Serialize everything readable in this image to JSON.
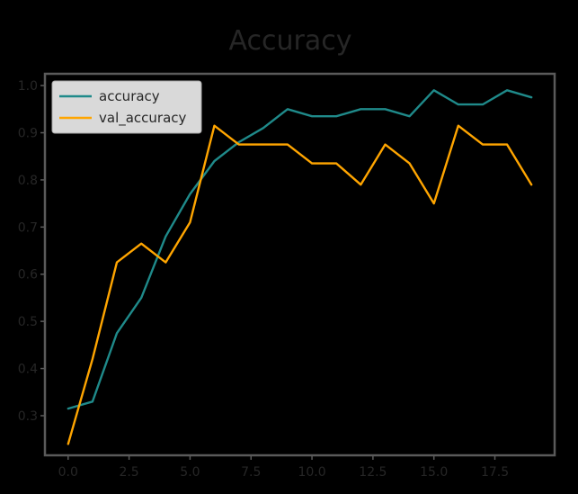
{
  "chart_data": {
    "type": "line",
    "title": "Accuracy",
    "xlabel": "",
    "ylabel": "",
    "x": [
      0,
      1,
      2,
      3,
      4,
      5,
      6,
      7,
      8,
      9,
      10,
      11,
      12,
      13,
      14,
      15,
      16,
      17,
      18,
      19
    ],
    "xlim": [
      -0.95,
      19.95
    ],
    "ylim": [
      0.216,
      1.025
    ],
    "x_ticks": [
      0.0,
      2.5,
      5.0,
      7.5,
      10.0,
      12.5,
      15.0,
      17.5
    ],
    "x_tick_labels": [
      "0.0",
      "2.5",
      "5.0",
      "7.5",
      "10.0",
      "12.5",
      "15.0",
      "17.5"
    ],
    "y_ticks": [
      0.3,
      0.4,
      0.5,
      0.6,
      0.7,
      0.8,
      0.9,
      1.0
    ],
    "y_tick_labels": [
      "0.3",
      "0.4",
      "0.5",
      "0.6",
      "0.7",
      "0.8",
      "0.9",
      "1.0"
    ],
    "grid": false,
    "legend_position": "top-left",
    "series": [
      {
        "name": "accuracy",
        "color": "#1f8a8a",
        "values": [
          0.315,
          0.33,
          0.475,
          0.55,
          0.68,
          0.77,
          0.84,
          0.88,
          0.91,
          0.95,
          0.935,
          0.935,
          0.95,
          0.95,
          0.935,
          0.99,
          0.96,
          0.96,
          0.99,
          0.975
        ]
      },
      {
        "name": "val_accuracy",
        "color": "#ffa500",
        "values": [
          0.24,
          0.42,
          0.625,
          0.665,
          0.625,
          0.71,
          0.915,
          0.875,
          0.875,
          0.875,
          0.835,
          0.835,
          0.79,
          0.875,
          0.835,
          0.75,
          0.915,
          0.875,
          0.875,
          0.79
        ]
      }
    ]
  },
  "colors": {
    "background": "#000000",
    "text": "#262626",
    "frame": "#5a5a5a",
    "legend_background": "#d9d9d9",
    "legend_border": "#a8a8a8"
  }
}
